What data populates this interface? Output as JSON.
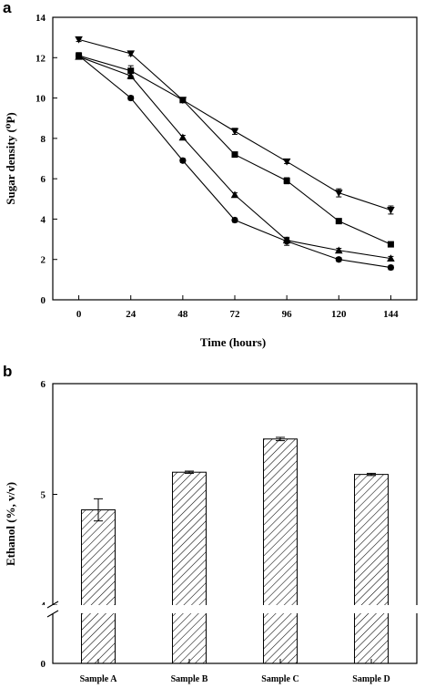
{
  "panel_a_label": "a",
  "panel_b_label": "b",
  "chart_data": [
    {
      "type": "line",
      "x_label": "Time (hours)",
      "y_label": "Sugar density (⁰P)",
      "x_ticks": [
        "0",
        "24",
        "48",
        "72",
        "96",
        "120",
        "144"
      ],
      "y_ticks": [
        "0",
        "2",
        "4",
        "6",
        "8",
        "10",
        "12",
        "14"
      ],
      "xlim": [
        -12,
        156
      ],
      "ylim": [
        0,
        14
      ],
      "x": [
        0,
        24,
        48,
        72,
        96,
        120,
        144
      ],
      "series": [
        {
          "marker": "triangle-down",
          "values": [
            12.9,
            12.2,
            9.9,
            8.35,
            6.85,
            5.3,
            4.45
          ],
          "errors": [
            0.1,
            0.1,
            0.1,
            0.15,
            0.1,
            0.2,
            0.2
          ]
        },
        {
          "marker": "square",
          "values": [
            12.1,
            11.35,
            9.9,
            7.2,
            5.9,
            3.9,
            2.75
          ],
          "errors": [
            0.1,
            0.25,
            0.1,
            0.1,
            0.15,
            0.1,
            0.1
          ]
        },
        {
          "marker": "triangle-up",
          "values": [
            12.05,
            11.1,
            8.05,
            5.2,
            2.95,
            2.45,
            2.05
          ],
          "errors": [
            0.1,
            0.15,
            0.1,
            0.1,
            0.1,
            0.1,
            0.1
          ]
        },
        {
          "marker": "circle",
          "values": [
            12.1,
            10.0,
            6.9,
            3.95,
            2.9,
            2.0,
            1.6
          ],
          "errors": [
            0.15,
            0.1,
            0.1,
            0.1,
            0.2,
            0.1,
            0.1
          ]
        }
      ]
    },
    {
      "type": "bar",
      "y_label": "Ethanol (%, v/v)",
      "categories": [
        "Sample A",
        "Sample B",
        "Sample C",
        "Sample D"
      ],
      "values": [
        4.86,
        5.2,
        5.5,
        5.18
      ],
      "errors": [
        0.1,
        0.01,
        0.015,
        0.01
      ],
      "y_ticks": [
        "0",
        "4",
        "5",
        "6"
      ],
      "ylim": [
        0,
        6
      ],
      "axis_break": [
        0,
        4
      ],
      "fill": "diagonal hatch"
    }
  ]
}
